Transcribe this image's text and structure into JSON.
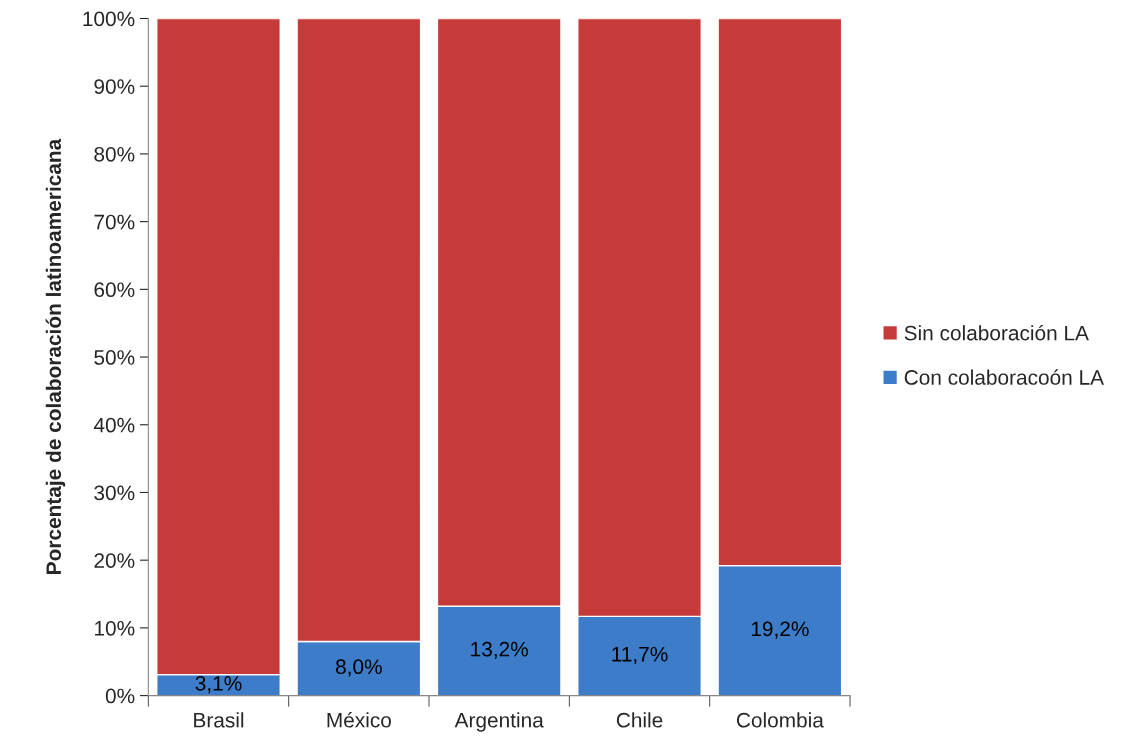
{
  "chart_data": {
    "type": "bar",
    "stacked": true,
    "ylabel": "Porcentaje de colaboración latinoamericana",
    "categories": [
      "Brasil",
      "México",
      "Argentina",
      "Chile",
      "Colombia"
    ],
    "series": [
      {
        "name": "Con colaboracoón LA",
        "color": "#3d7cc9",
        "values": [
          3.1,
          8.0,
          13.2,
          11.7,
          19.2
        ],
        "value_labels": [
          "3,1%",
          "8,0%",
          "13,2%",
          "11,7%",
          "19,2%"
        ]
      },
      {
        "name": "Sin colaboración LA",
        "color": "#c63b39",
        "values": [
          96.9,
          92.0,
          86.8,
          88.3,
          80.8
        ]
      }
    ],
    "ylim": [
      0,
      100
    ],
    "yticks": [
      {
        "value": 0,
        "label": "0%"
      },
      {
        "value": 10,
        "label": "10%"
      },
      {
        "value": 20,
        "label": "20%"
      },
      {
        "value": 30,
        "label": "30%"
      },
      {
        "value": 40,
        "label": "40%"
      },
      {
        "value": 50,
        "label": "50%"
      },
      {
        "value": 60,
        "label": "60%"
      },
      {
        "value": 70,
        "label": "70%"
      },
      {
        "value": 80,
        "label": "80%"
      },
      {
        "value": 90,
        "label": "90%"
      },
      {
        "value": 100,
        "label": "100%"
      }
    ],
    "grid": false,
    "legend": "right"
  }
}
